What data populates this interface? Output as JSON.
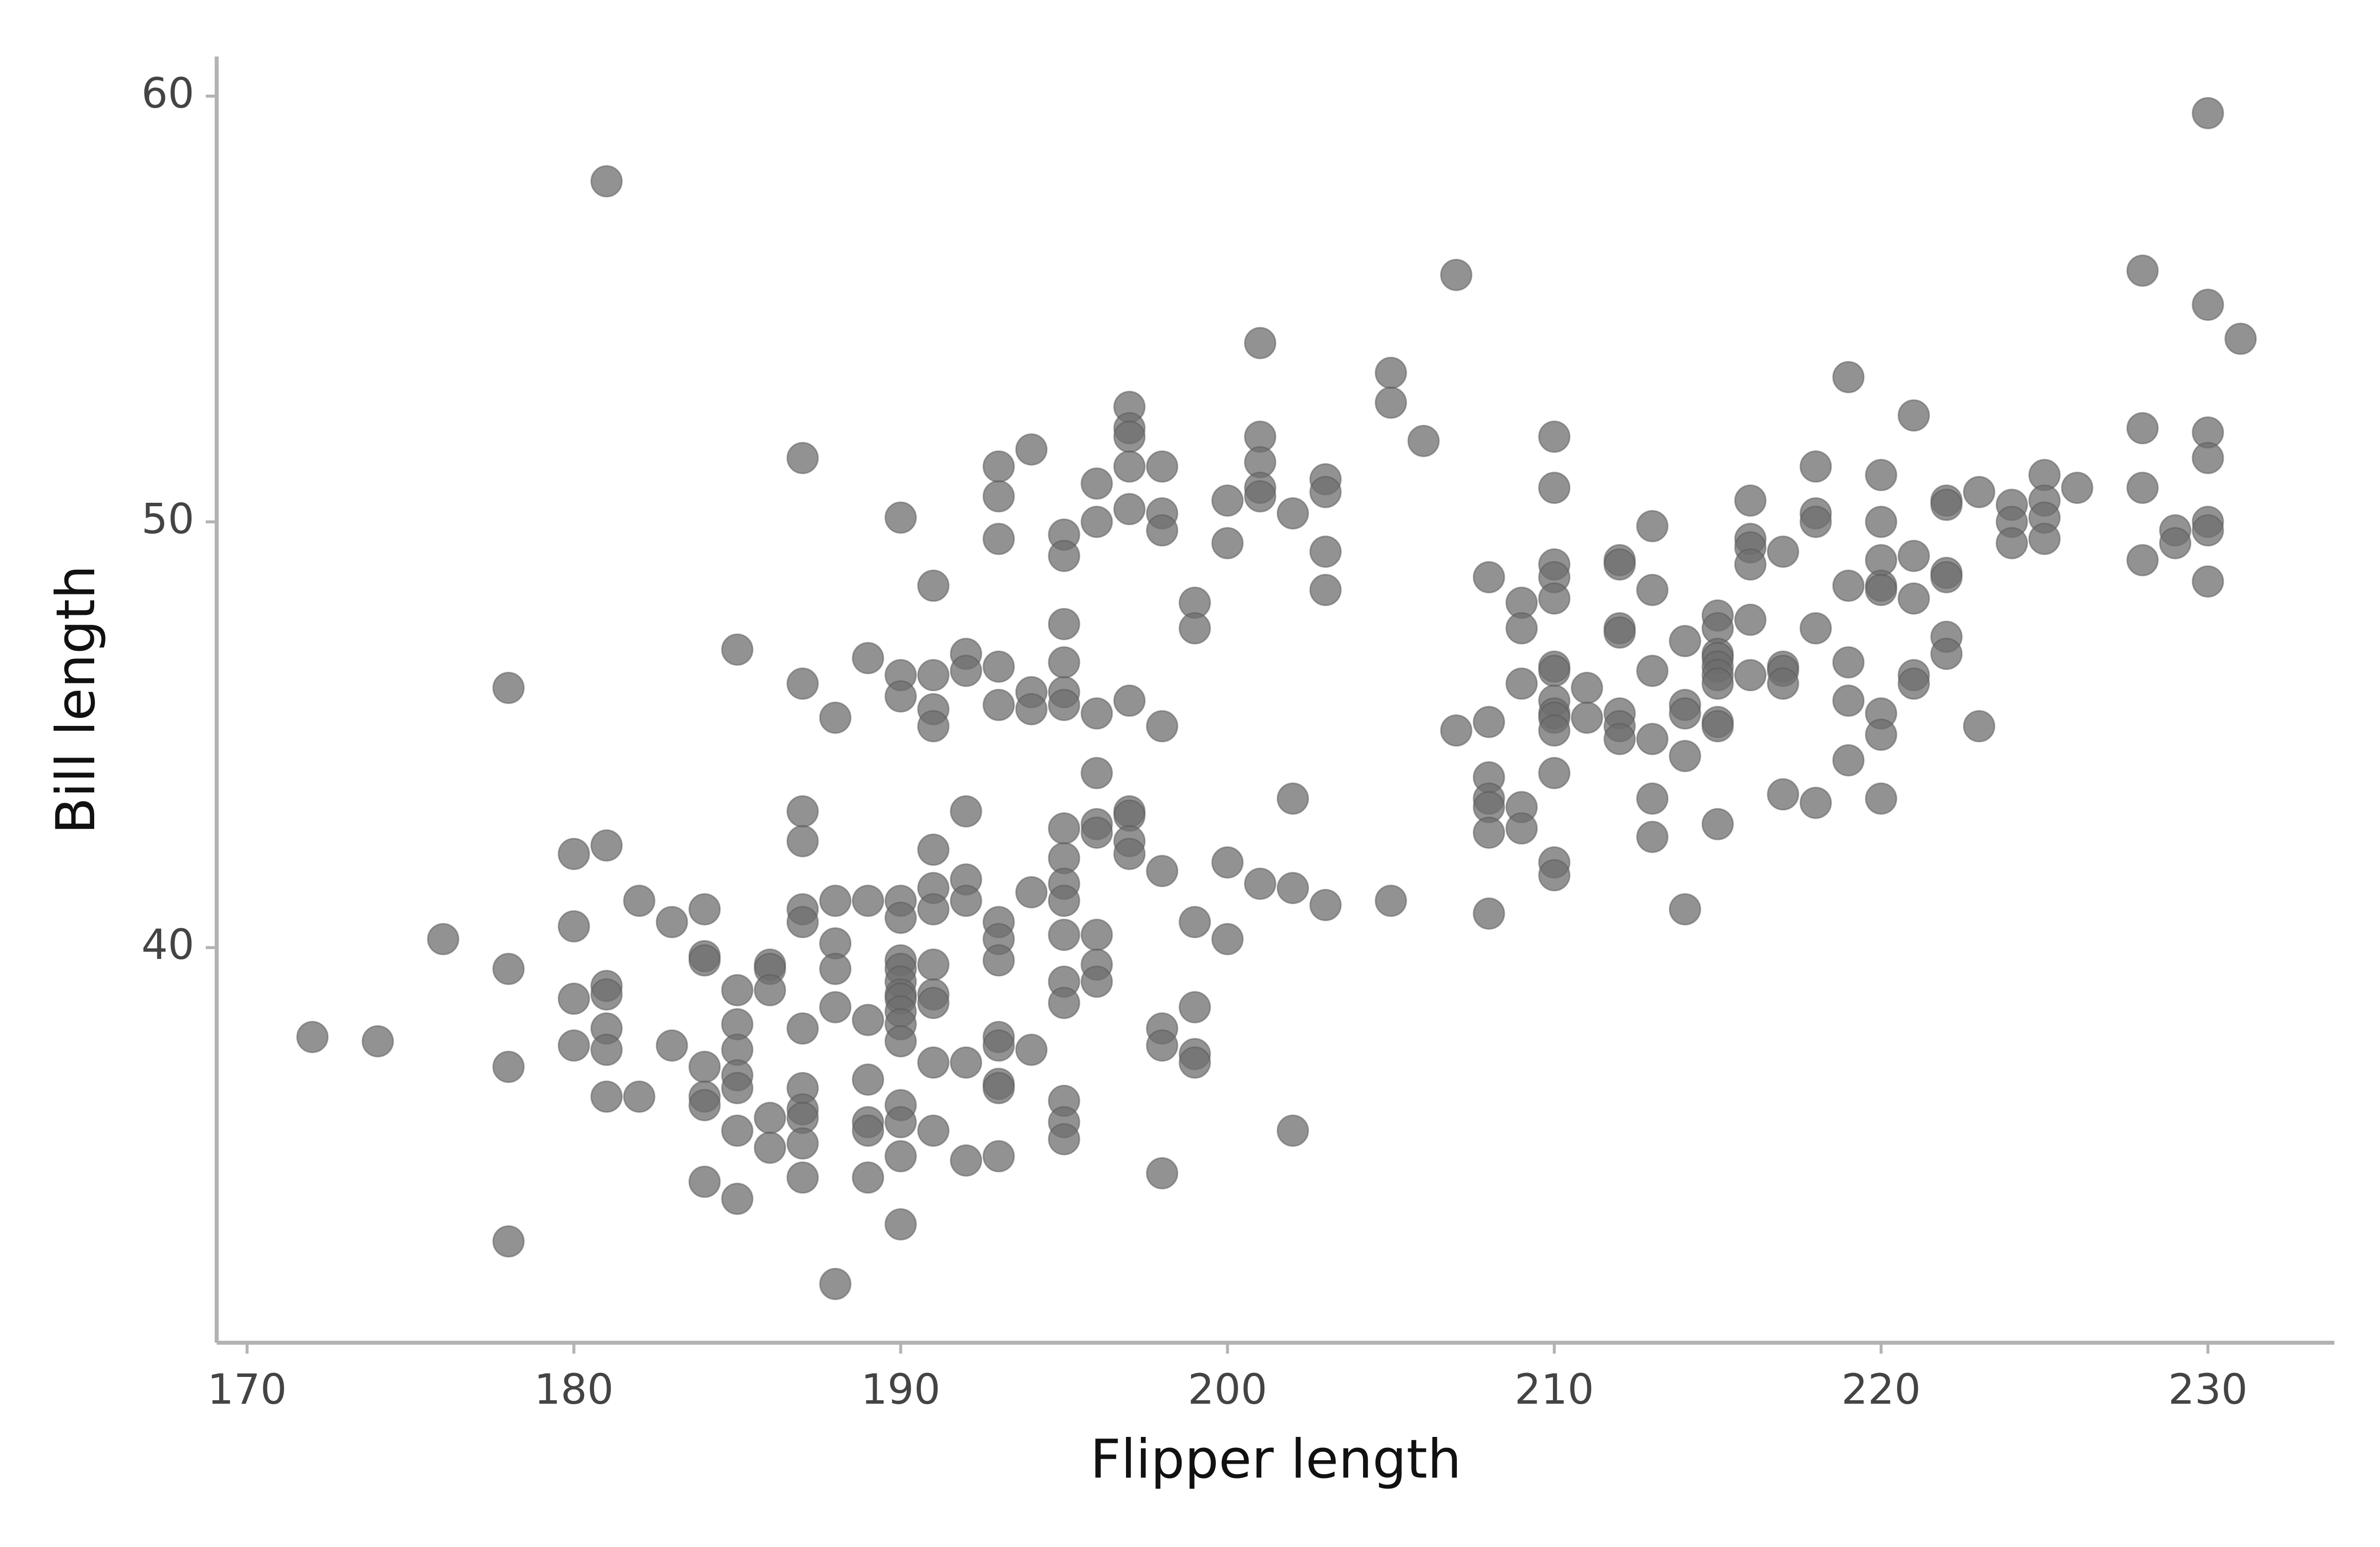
{
  "chart_data": {
    "type": "scatter",
    "x_label": "Flipper length",
    "y_label": "Bill length",
    "color": "#6e6e6e",
    "xlim": [
      169.07,
      233.87
    ],
    "ylim": [
      30.72,
      60.93
    ],
    "xticks": [
      170,
      180,
      190,
      200,
      210,
      220,
      230
    ],
    "yticks": [
      40,
      50,
      60
    ],
    "x": [
      172,
      174,
      176,
      178,
      178,
      178,
      178,
      180,
      180,
      180,
      180,
      181,
      181,
      181,
      181,
      181,
      181,
      181,
      182,
      182,
      183,
      183,
      184,
      184,
      184,
      184,
      184,
      184,
      184,
      185,
      185,
      185,
      185,
      185,
      185,
      185,
      185,
      186,
      186,
      186,
      186,
      186,
      187,
      187,
      187,
      187,
      187,
      187,
      187,
      187,
      187,
      187,
      187,
      187,
      188,
      188,
      188,
      188,
      188,
      188,
      189,
      189,
      189,
      189,
      189,
      189,
      189,
      190,
      190,
      190,
      190,
      190,
      190,
      190,
      190,
      190,
      190,
      190,
      190,
      190,
      190,
      190,
      190,
      190,
      191,
      191,
      191,
      191,
      191,
      191,
      191,
      191,
      191,
      191,
      191,
      191,
      192,
      192,
      192,
      192,
      192,
      192,
      192,
      193,
      193,
      193,
      193,
      193,
      193,
      193,
      193,
      193,
      193,
      193,
      193,
      193,
      194,
      194,
      194,
      194,
      194,
      195,
      195,
      195,
      195,
      195,
      195,
      195,
      195,
      195,
      195,
      195,
      195,
      195,
      195,
      195,
      195,
      196,
      196,
      196,
      196,
      196,
      196,
      196,
      196,
      196,
      197,
      197,
      197,
      197,
      197,
      197,
      197,
      197,
      197,
      197,
      198,
      198,
      198,
      198,
      198,
      198,
      198,
      198,
      199,
      199,
      199,
      199,
      199,
      199,
      200,
      200,
      200,
      200,
      201,
      201,
      201,
      201,
      201,
      201,
      202,
      202,
      202,
      202,
      203,
      203,
      203,
      203,
      203,
      205,
      205,
      205,
      206,
      207,
      207,
      208,
      208,
      208,
      208,
      208,
      208,
      208,
      209,
      209,
      209,
      209,
      209,
      210,
      210,
      210,
      210,
      210,
      210,
      210,
      210,
      210,
      210,
      210,
      210,
      210,
      210,
      211,
      211,
      212,
      212,
      212,
      212,
      212,
      212,
      212,
      213,
      213,
      213,
      213,
      213,
      213,
      214,
      214,
      214,
      214,
      214,
      215,
      215,
      215,
      215,
      215,
      215,
      215,
      215,
      215,
      215,
      216,
      216,
      216,
      216,
      216,
      216,
      217,
      217,
      217,
      217,
      217,
      218,
      218,
      218,
      218,
      218,
      219,
      219,
      219,
      219,
      219,
      220,
      220,
      220,
      220,
      220,
      220,
      220,
      220,
      221,
      221,
      221,
      221,
      221,
      222,
      222,
      222,
      222,
      222,
      222,
      223,
      223,
      224,
      224,
      224,
      225,
      225,
      225,
      225,
      226,
      228,
      228,
      228,
      228,
      229,
      229,
      230,
      230,
      230,
      230,
      230,
      230,
      230,
      231
    ],
    "y": [
      37.9,
      37.8,
      40.2,
      46.1,
      39.5,
      37.2,
      33.1,
      42.2,
      40.5,
      38.8,
      37.7,
      58.0,
      42.4,
      39.1,
      38.9,
      38.1,
      37.6,
      36.5,
      41.1,
      36.5,
      40.6,
      37.7,
      40.9,
      39.8,
      39.7,
      37.2,
      36.5,
      36.3,
      34.5,
      47.0,
      39.0,
      38.2,
      37.6,
      37.0,
      36.7,
      35.7,
      34.1,
      39.6,
      39.5,
      39.0,
      36.0,
      35.3,
      51.5,
      46.2,
      43.2,
      42.5,
      40.9,
      40.6,
      38.1,
      36.7,
      36.2,
      36.0,
      35.4,
      34.6,
      45.4,
      41.1,
      40.1,
      39.5,
      38.6,
      32.1,
      46.8,
      41.1,
      38.3,
      36.9,
      35.9,
      35.7,
      34.6,
      50.1,
      46.4,
      45.9,
      41.1,
      40.7,
      39.7,
      39.5,
      39.2,
      38.9,
      38.8,
      38.5,
      38.2,
      37.8,
      36.3,
      35.9,
      35.1,
      33.5,
      48.5,
      46.4,
      45.6,
      45.2,
      42.3,
      41.4,
      40.9,
      39.6,
      38.9,
      38.7,
      37.3,
      35.7,
      46.9,
      46.5,
      43.2,
      41.6,
      41.1,
      37.3,
      35.0,
      51.3,
      50.6,
      49.6,
      46.6,
      45.7,
      40.6,
      40.2,
      39.7,
      37.9,
      37.7,
      36.8,
      36.7,
      35.1,
      51.7,
      46.0,
      45.6,
      41.3,
      37.6,
      49.7,
      49.2,
      47.6,
      46.7,
      46.0,
      45.7,
      42.8,
      42.1,
      41.5,
      41.1,
      40.3,
      39.2,
      38.7,
      36.4,
      35.9,
      35.5,
      50.9,
      50.0,
      45.5,
      44.1,
      42.9,
      42.7,
      40.3,
      39.6,
      39.2,
      52.7,
      52.2,
      52.0,
      51.3,
      50.3,
      45.8,
      43.2,
      43.1,
      42.5,
      42.2,
      51.3,
      50.2,
      49.8,
      45.2,
      41.8,
      38.1,
      37.7,
      34.7,
      48.1,
      47.5,
      40.6,
      38.6,
      37.5,
      37.3,
      50.5,
      49.5,
      42.0,
      40.2,
      54.2,
      52.0,
      51.4,
      50.8,
      50.6,
      41.5,
      50.2,
      43.5,
      41.4,
      35.7,
      51.0,
      50.7,
      49.3,
      48.4,
      41.0,
      53.5,
      52.8,
      41.1,
      51.9,
      55.8,
      45.1,
      48.7,
      45.3,
      44.0,
      43.5,
      43.3,
      42.7,
      40.8,
      48.1,
      47.5,
      46.2,
      43.3,
      42.8,
      52.0,
      50.8,
      49.0,
      48.7,
      48.2,
      46.6,
      46.5,
      45.8,
      45.5,
      45.4,
      45.1,
      44.1,
      42.0,
      41.7,
      46.1,
      45.4,
      49.1,
      49.0,
      47.5,
      47.4,
      45.5,
      45.2,
      44.9,
      49.9,
      48.4,
      46.5,
      44.9,
      43.5,
      42.6,
      47.2,
      45.7,
      45.5,
      44.5,
      40.9,
      47.8,
      47.5,
      46.9,
      46.8,
      46.6,
      46.4,
      46.2,
      45.3,
      45.2,
      42.9,
      50.5,
      49.6,
      49.4,
      49.0,
      47.7,
      46.4,
      49.3,
      46.6,
      46.5,
      46.2,
      43.6,
      51.3,
      50.2,
      50.0,
      47.5,
      43.4,
      53.4,
      48.5,
      46.7,
      45.8,
      44.4,
      51.1,
      50.0,
      49.1,
      48.5,
      48.4,
      45.5,
      45.0,
      43.5,
      52.5,
      49.2,
      48.2,
      46.4,
      46.2,
      50.5,
      50.4,
      48.8,
      48.7,
      47.3,
      46.9,
      50.7,
      45.2,
      50.4,
      50.0,
      49.5,
      51.1,
      50.5,
      50.1,
      49.6,
      50.8,
      55.9,
      52.2,
      50.8,
      49.1,
      49.8,
      49.5,
      59.6,
      55.1,
      52.1,
      51.5,
      50.0,
      49.8,
      48.6,
      54.3
    ]
  }
}
